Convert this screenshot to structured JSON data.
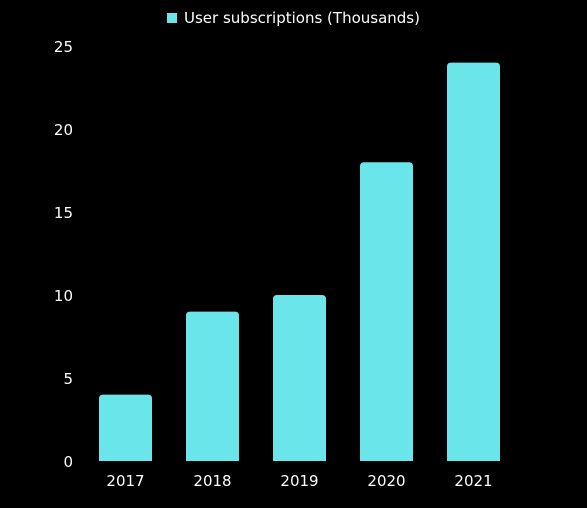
{
  "chart_data": {
    "type": "bar",
    "categories": [
      "2017",
      "2018",
      "2019",
      "2020",
      "2021"
    ],
    "series": [
      {
        "name": "User subscriptions (Thousands)",
        "values": [
          4,
          9,
          10,
          18,
          24
        ]
      }
    ],
    "ylim": [
      0,
      25
    ],
    "yticks": [
      0,
      5,
      10,
      15,
      20,
      25
    ],
    "title": "",
    "xlabel": "",
    "ylabel": "",
    "grid": false,
    "legend_position": "top-center"
  },
  "colors": {
    "background": "#000000",
    "bar": "#6ae6ea",
    "text": "#ffffff"
  }
}
